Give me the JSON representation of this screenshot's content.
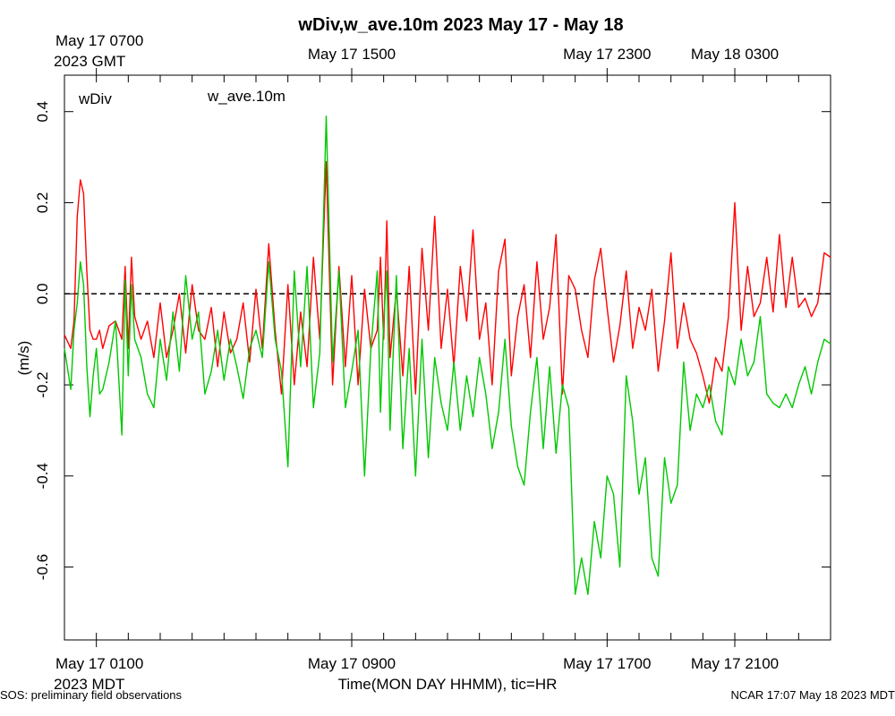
{
  "chart_data": {
    "type": "line",
    "title": "wDiv,w_ave.10m 2023 May 17 - May 18",
    "ylabel": "(m/s)",
    "xlabel": "Time(MON DAY HHMM), tic=HR",
    "ylim": [
      -0.76,
      0.48
    ],
    "y_ticks": [
      0.4,
      0.2,
      0.0,
      -0.2,
      -0.4,
      -0.6
    ],
    "y_tick_labels": [
      "0.4",
      "0.2",
      "0.0",
      "-0.2",
      "-0.4",
      "-0.6"
    ],
    "x_unit": "hours since 2023 May 17 0000 MDT",
    "xlim": [
      0,
      24
    ],
    "reference_line": 0.0,
    "legend_placement": "top-left",
    "bottom_axis": {
      "ticks": [
        1,
        9,
        17,
        21
      ],
      "labels": [
        "May 17 0100",
        "May 17 0900",
        "May 17 1700",
        "May 17 2100"
      ],
      "timezone_label": "2023 MDT"
    },
    "top_axis": {
      "ticks": [
        1,
        9,
        17,
        21
      ],
      "labels": [
        "May 17 0700",
        "May 17 1500",
        "May 17 2300",
        "May 18 0300"
      ],
      "timezone_label": "2023 GMT"
    },
    "series": [
      {
        "name": "wDiv",
        "color": "#ff0000",
        "x": [
          0.0,
          0.2,
          0.3,
          0.4,
          0.5,
          0.6,
          0.7,
          0.8,
          0.9,
          1.0,
          1.1,
          1.2,
          1.4,
          1.6,
          1.8,
          1.9,
          2.0,
          2.1,
          2.2,
          2.4,
          2.6,
          2.8,
          3.0,
          3.2,
          3.4,
          3.6,
          3.8,
          4.0,
          4.2,
          4.4,
          4.6,
          4.8,
          5.0,
          5.2,
          5.4,
          5.6,
          5.8,
          6.0,
          6.2,
          6.4,
          6.6,
          6.8,
          7.0,
          7.2,
          7.4,
          7.6,
          7.8,
          8.0,
          8.2,
          8.4,
          8.6,
          8.8,
          9.0,
          9.2,
          9.4,
          9.6,
          9.8,
          9.9,
          10.0,
          10.1,
          10.2,
          10.4,
          10.6,
          10.8,
          11.0,
          11.2,
          11.4,
          11.6,
          11.8,
          12.0,
          12.2,
          12.4,
          12.6,
          12.8,
          13.0,
          13.2,
          13.4,
          13.6,
          13.8,
          14.0,
          14.2,
          14.4,
          14.6,
          14.8,
          15.0,
          15.2,
          15.4,
          15.6,
          15.8,
          16.0,
          16.2,
          16.4,
          16.6,
          16.8,
          17.0,
          17.2,
          17.4,
          17.6,
          17.8,
          18.0,
          18.2,
          18.4,
          18.6,
          18.8,
          19.0,
          19.2,
          19.4,
          19.6,
          19.8,
          20.0,
          20.2,
          20.4,
          20.6,
          20.8,
          21.0,
          21.2,
          21.4,
          21.6,
          21.8,
          22.0,
          22.2,
          22.4,
          22.6,
          22.8,
          23.0,
          23.2,
          23.4,
          23.6,
          23.8,
          24.0
        ],
        "values": [
          -0.09,
          -0.12,
          -0.06,
          0.17,
          0.25,
          0.22,
          0.05,
          -0.08,
          -0.1,
          -0.1,
          -0.08,
          -0.12,
          -0.07,
          -0.06,
          -0.1,
          0.06,
          -0.12,
          0.08,
          -0.05,
          -0.1,
          -0.06,
          -0.14,
          -0.02,
          -0.14,
          -0.08,
          0.0,
          -0.13,
          0.02,
          -0.08,
          -0.1,
          -0.03,
          -0.16,
          -0.04,
          -0.13,
          -0.1,
          -0.02,
          -0.15,
          0.01,
          -0.12,
          0.11,
          -0.08,
          -0.22,
          0.02,
          -0.2,
          -0.04,
          -0.16,
          0.08,
          -0.1,
          0.29,
          -0.2,
          0.06,
          -0.16,
          0.04,
          -0.2,
          0.01,
          -0.12,
          -0.08,
          0.08,
          -0.1,
          0.16,
          -0.14,
          0.01,
          -0.18,
          0.06,
          -0.22,
          0.1,
          -0.08,
          0.17,
          -0.12,
          0.01,
          -0.16,
          0.06,
          -0.06,
          0.14,
          -0.1,
          -0.02,
          -0.2,
          0.05,
          0.12,
          -0.18,
          -0.05,
          0.02,
          -0.14,
          0.07,
          -0.1,
          -0.03,
          0.13,
          -0.22,
          0.04,
          0.01,
          -0.08,
          -0.14,
          0.03,
          0.1,
          -0.03,
          -0.15,
          -0.07,
          0.05,
          -0.12,
          -0.03,
          -0.08,
          0.01,
          -0.17,
          -0.06,
          0.09,
          -0.12,
          -0.02,
          -0.1,
          -0.13,
          -0.18,
          -0.24,
          -0.14,
          -0.17,
          -0.05,
          0.2,
          -0.08,
          0.06,
          -0.05,
          -0.02,
          0.08,
          -0.04,
          0.13,
          -0.03,
          0.08,
          -0.03,
          -0.01,
          -0.05,
          -0.02,
          0.09,
          0.08
        ]
      },
      {
        "name": "w_ave.10m",
        "color": "#00c800",
        "x": [
          0.0,
          0.2,
          0.3,
          0.4,
          0.5,
          0.6,
          0.7,
          0.8,
          0.9,
          1.0,
          1.1,
          1.2,
          1.4,
          1.6,
          1.8,
          1.9,
          2.0,
          2.1,
          2.2,
          2.4,
          2.6,
          2.8,
          3.0,
          3.2,
          3.4,
          3.6,
          3.8,
          4.0,
          4.2,
          4.4,
          4.6,
          4.8,
          5.0,
          5.2,
          5.4,
          5.6,
          5.8,
          6.0,
          6.2,
          6.4,
          6.6,
          6.8,
          7.0,
          7.2,
          7.4,
          7.6,
          7.8,
          8.0,
          8.2,
          8.4,
          8.6,
          8.8,
          9.0,
          9.2,
          9.4,
          9.6,
          9.8,
          9.9,
          10.0,
          10.1,
          10.2,
          10.4,
          10.6,
          10.8,
          11.0,
          11.2,
          11.4,
          11.6,
          11.8,
          12.0,
          12.2,
          12.4,
          12.6,
          12.8,
          13.0,
          13.2,
          13.4,
          13.6,
          13.8,
          14.0,
          14.2,
          14.4,
          14.6,
          14.8,
          15.0,
          15.2,
          15.4,
          15.6,
          15.8,
          16.0,
          16.2,
          16.4,
          16.6,
          16.8,
          17.0,
          17.2,
          17.4,
          17.6,
          17.8,
          18.0,
          18.2,
          18.4,
          18.6,
          18.8,
          19.0,
          19.2,
          19.4,
          19.6,
          19.8,
          20.0,
          20.2,
          20.4,
          20.6,
          20.8,
          21.0,
          21.2,
          21.4,
          21.6,
          21.8,
          22.0,
          22.2,
          22.4,
          22.6,
          22.8,
          23.0,
          23.2,
          23.4,
          23.6,
          23.8,
          24.0
        ],
        "values": [
          -0.12,
          -0.21,
          -0.08,
          -0.02,
          0.07,
          0.02,
          -0.16,
          -0.27,
          -0.18,
          -0.12,
          -0.22,
          -0.21,
          -0.15,
          -0.06,
          -0.31,
          0.03,
          -0.18,
          0.02,
          -0.1,
          -0.14,
          -0.22,
          -0.25,
          -0.1,
          -0.19,
          -0.04,
          -0.17,
          0.04,
          -0.1,
          -0.04,
          -0.22,
          -0.17,
          -0.08,
          -0.19,
          -0.1,
          -0.16,
          -0.23,
          -0.12,
          -0.08,
          -0.14,
          0.07,
          -0.1,
          -0.17,
          -0.38,
          0.05,
          -0.16,
          0.06,
          -0.25,
          -0.13,
          0.39,
          -0.15,
          0.05,
          -0.25,
          -0.17,
          -0.08,
          -0.4,
          -0.12,
          0.05,
          -0.26,
          -0.06,
          0.05,
          -0.3,
          0.04,
          -0.34,
          -0.12,
          -0.4,
          -0.1,
          -0.36,
          -0.14,
          -0.24,
          -0.3,
          -0.15,
          -0.3,
          -0.18,
          -0.27,
          -0.14,
          -0.22,
          -0.34,
          -0.26,
          -0.1,
          -0.29,
          -0.38,
          -0.42,
          -0.26,
          -0.14,
          -0.34,
          -0.16,
          -0.35,
          -0.2,
          -0.25,
          -0.66,
          -0.58,
          -0.66,
          -0.5,
          -0.58,
          -0.4,
          -0.44,
          -0.6,
          -0.18,
          -0.28,
          -0.44,
          -0.36,
          -0.58,
          -0.62,
          -0.36,
          -0.46,
          -0.42,
          -0.15,
          -0.3,
          -0.22,
          -0.25,
          -0.2,
          -0.28,
          -0.31,
          -0.16,
          -0.2,
          -0.1,
          -0.18,
          -0.15,
          -0.05,
          -0.22,
          -0.24,
          -0.25,
          -0.22,
          -0.25,
          -0.2,
          -0.16,
          -0.22,
          -0.15,
          -0.1,
          -0.11
        ]
      }
    ]
  },
  "footer": {
    "left": "SOS: preliminary field observations",
    "right": "NCAR 17:07 May 18 2023 MDT"
  },
  "colors": {
    "wdiv": "#ff0000",
    "w_ave": "#00c800",
    "axis": "#000000"
  }
}
